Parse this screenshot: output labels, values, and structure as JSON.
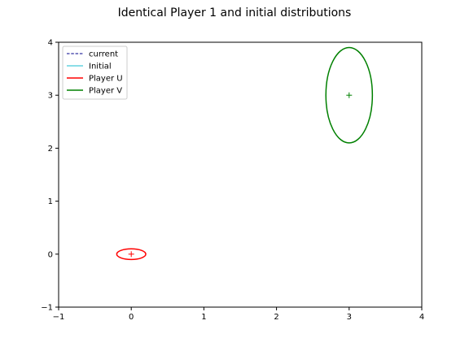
{
  "chart_data": {
    "type": "line",
    "title": "Identical Player 1 and initial distributions",
    "xlim": [
      -1,
      4
    ],
    "ylim": [
      -1,
      4
    ],
    "xticks": [
      -1,
      0,
      1,
      2,
      3,
      4
    ],
    "yticks": [
      -1,
      0,
      1,
      2,
      3,
      4
    ],
    "grid": false,
    "legend_position": "top-left",
    "legend": [
      {
        "label": "current",
        "color": "#00008b",
        "style": "dashed"
      },
      {
        "label": "Initial",
        "color": "#17becf",
        "style": "solid"
      },
      {
        "label": "Player U",
        "color": "#ff0000",
        "style": "solid"
      },
      {
        "label": "Player V",
        "color": "#008000",
        "style": "solid"
      }
    ],
    "ellipses": [
      {
        "name": "Player U",
        "color": "#ff0000",
        "cx": 0,
        "cy": 0,
        "rx": 0.2,
        "ry": 0.1
      },
      {
        "name": "Player V",
        "color": "#008000",
        "cx": 3,
        "cy": 3,
        "rx": 0.32,
        "ry": 0.9
      }
    ],
    "markers": [
      {
        "name": "Player U",
        "color": "#ff0000",
        "x": 0,
        "y": 0,
        "symbol": "+"
      },
      {
        "name": "Player V",
        "color": "#008000",
        "x": 3,
        "y": 3,
        "symbol": "+"
      }
    ]
  }
}
